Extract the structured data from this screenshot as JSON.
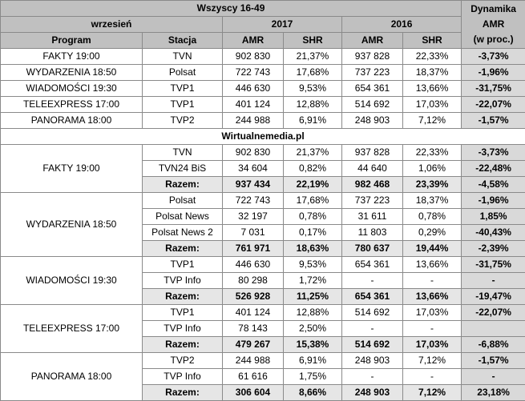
{
  "header": {
    "title": "Wszyscy 16-49",
    "period": "wrzesień",
    "year_2017": "2017",
    "year_2016": "2016",
    "dynamics_label": [
      "Dynamika",
      "AMR",
      "(w proc.)"
    ],
    "program": "Program",
    "station": "Stacja",
    "amr": "AMR",
    "shr": "SHR"
  },
  "summary_rows": [
    {
      "program": "FAKTY 19:00",
      "station": "TVN",
      "amr_2017": "902 830",
      "shr_2017": "21,37%",
      "amr_2016": "937 828",
      "shr_2016": "22,33%",
      "dynamics": "-3,73%"
    },
    {
      "program": "WYDARZENIA 18:50",
      "station": "Polsat",
      "amr_2017": "722 743",
      "shr_2017": "17,68%",
      "amr_2016": "737 223",
      "shr_2016": "18,37%",
      "dynamics": "-1,96%"
    },
    {
      "program": "WIADOMOŚCI 19:30",
      "station": "TVP1",
      "amr_2017": "446 630",
      "shr_2017": "9,53%",
      "amr_2016": "654 361",
      "shr_2016": "13,66%",
      "dynamics": "-31,75%"
    },
    {
      "program": "TELEEXPRESS 17:00",
      "station": "TVP1",
      "amr_2017": "401 124",
      "shr_2017": "12,88%",
      "amr_2016": "514 692",
      "shr_2016": "17,03%",
      "dynamics": "-22,07%"
    },
    {
      "program": "PANORAMA 18:00",
      "station": "TVP2",
      "amr_2017": "244 988",
      "shr_2017": "6,91%",
      "amr_2016": "248 903",
      "shr_2016": "7,12%",
      "dynamics": "-1,57%"
    }
  ],
  "source_label": "Wirtualnemedia.pl",
  "groups": [
    {
      "program": "FAKTY 19:00",
      "rows": [
        {
          "station": "TVN",
          "amr_2017": "902 830",
          "shr_2017": "21,37%",
          "amr_2016": "937 828",
          "shr_2016": "22,33%",
          "dynamics": "-3,73%"
        },
        {
          "station": "TVN24 BiS",
          "amr_2017": "34 604",
          "shr_2017": "0,82%",
          "amr_2016": "44 640",
          "shr_2016": "1,06%",
          "dynamics": "-22,48%"
        }
      ],
      "total": {
        "label": "Razem:",
        "amr_2017": "937 434",
        "shr_2017": "22,19%",
        "amr_2016": "982 468",
        "shr_2016": "23,39%",
        "dynamics": "-4,58%"
      }
    },
    {
      "program": "WYDARZENIA 18:50",
      "rows": [
        {
          "station": "Polsat",
          "amr_2017": "722 743",
          "shr_2017": "17,68%",
          "amr_2016": "737 223",
          "shr_2016": "18,37%",
          "dynamics": "-1,96%"
        },
        {
          "station": "Polsat News",
          "amr_2017": "32 197",
          "shr_2017": "0,78%",
          "amr_2016": "31 611",
          "shr_2016": "0,78%",
          "dynamics": "1,85%"
        },
        {
          "station": "Polsat News 2",
          "amr_2017": "7 031",
          "shr_2017": "0,17%",
          "amr_2016": "11 803",
          "shr_2016": "0,29%",
          "dynamics": "-40,43%"
        }
      ],
      "total": {
        "label": "Razem:",
        "amr_2017": "761 971",
        "shr_2017": "18,63%",
        "amr_2016": "780 637",
        "shr_2016": "19,44%",
        "dynamics": "-2,39%"
      }
    },
    {
      "program": "WIADOMOŚCI 19:30",
      "rows": [
        {
          "station": "TVP1",
          "amr_2017": "446 630",
          "shr_2017": "9,53%",
          "amr_2016": "654 361",
          "shr_2016": "13,66%",
          "dynamics": "-31,75%"
        },
        {
          "station": "TVP Info",
          "amr_2017": "80 298",
          "shr_2017": "1,72%",
          "amr_2016": "-",
          "shr_2016": "-",
          "dynamics": "-"
        }
      ],
      "total": {
        "label": "Razem:",
        "amr_2017": "526 928",
        "shr_2017": "11,25%",
        "amr_2016": "654 361",
        "shr_2016": "13,66%",
        "dynamics": "-19,47%"
      }
    },
    {
      "program": "TELEEXPRESS 17:00",
      "rows": [
        {
          "station": "TVP1",
          "amr_2017": "401 124",
          "shr_2017": "12,88%",
          "amr_2016": "514 692",
          "shr_2016": "17,03%",
          "dynamics": "-22,07%"
        },
        {
          "station": "TVP Info",
          "amr_2017": "78 143",
          "shr_2017": "2,50%",
          "amr_2016": "-",
          "shr_2016": "-",
          "dynamics": ""
        }
      ],
      "total": {
        "label": "Razem:",
        "amr_2017": "479 267",
        "shr_2017": "15,38%",
        "amr_2016": "514 692",
        "shr_2016": "17,03%",
        "dynamics": "-6,88%"
      }
    },
    {
      "program": "PANORAMA 18:00",
      "rows": [
        {
          "station": "TVP2",
          "amr_2017": "244 988",
          "shr_2017": "6,91%",
          "amr_2016": "248 903",
          "shr_2016": "7,12%",
          "dynamics": "-1,57%"
        },
        {
          "station": "TVP Info",
          "amr_2017": "61 616",
          "shr_2017": "1,75%",
          "amr_2016": "-",
          "shr_2016": "-",
          "dynamics": "-"
        }
      ],
      "total": {
        "label": "Razem:",
        "amr_2017": "306 604",
        "shr_2017": "8,66%",
        "amr_2016": "248 903",
        "shr_2016": "7,12%",
        "dynamics": "23,18%"
      }
    }
  ]
}
